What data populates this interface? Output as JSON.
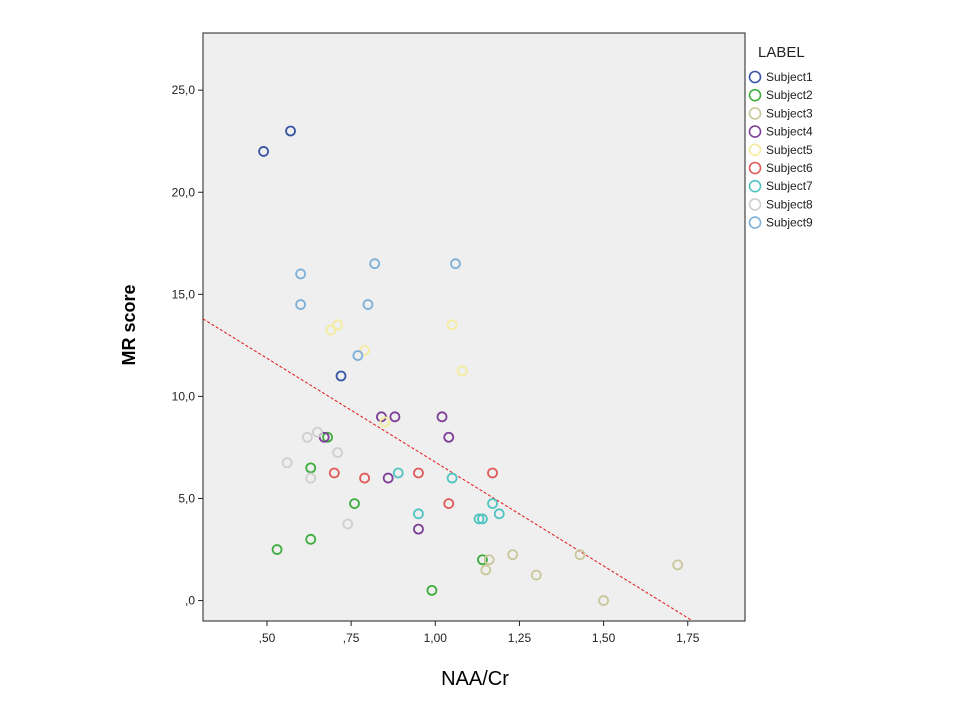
{
  "chart_data": {
    "type": "scatter",
    "xlabel": "NAA/Cr",
    "ylabel": "MR score",
    "xlim": [
      0.31,
      1.92
    ],
    "ylim": [
      -1.0,
      27.8
    ],
    "x_ticks": [
      {
        "value": 0.5,
        "label": ",50"
      },
      {
        "value": 0.75,
        "label": ",75"
      },
      {
        "value": 1.0,
        "label": "1,00"
      },
      {
        "value": 1.25,
        "label": "1,25"
      },
      {
        "value": 1.5,
        "label": "1,50"
      },
      {
        "value": 1.75,
        "label": "1,75"
      }
    ],
    "y_ticks": [
      {
        "value": 0,
        "label": ",0"
      },
      {
        "value": 5,
        "label": "5,0"
      },
      {
        "value": 10,
        "label": "10,0"
      },
      {
        "value": 15,
        "label": "15,0"
      },
      {
        "value": 20,
        "label": "20,0"
      },
      {
        "value": 25,
        "label": "25,0"
      }
    ],
    "grid": false,
    "background": "#efefef",
    "legend_title": "LABEL",
    "legend_position": "right",
    "fit_line": {
      "x": [
        0.31,
        1.76
      ],
      "y": [
        13.8,
        -0.95
      ],
      "color": "#e31a1c",
      "style": "dashed"
    },
    "series": [
      {
        "name": "Subject1",
        "color": "#3a55a4",
        "points": [
          [
            0.49,
            22.0
          ],
          [
            0.57,
            23.0
          ],
          [
            0.72,
            11.0
          ]
        ]
      },
      {
        "name": "Subject2",
        "color": "#3fae3f",
        "points": [
          [
            0.53,
            2.5
          ],
          [
            0.63,
            3.0
          ],
          [
            0.63,
            6.5
          ],
          [
            0.68,
            8.0
          ],
          [
            0.76,
            4.75
          ],
          [
            0.99,
            0.5
          ],
          [
            1.14,
            2.0
          ]
        ]
      },
      {
        "name": "Subject3",
        "color": "#c8c89a",
        "points": [
          [
            1.15,
            1.5
          ],
          [
            1.23,
            2.25
          ],
          [
            1.3,
            1.25
          ],
          [
            1.43,
            2.25
          ],
          [
            1.5,
            0.0
          ],
          [
            1.72,
            1.75
          ],
          [
            1.16,
            2.0
          ]
        ]
      },
      {
        "name": "Subject4",
        "color": "#7e3f98",
        "points": [
          [
            0.67,
            8.0
          ],
          [
            0.84,
            9.0
          ],
          [
            0.88,
            9.0
          ],
          [
            0.86,
            6.0
          ],
          [
            0.95,
            3.5
          ],
          [
            1.02,
            9.0
          ],
          [
            1.04,
            8.0
          ]
        ]
      },
      {
        "name": "Subject5",
        "color": "#f5ec9c",
        "points": [
          [
            0.69,
            13.25
          ],
          [
            0.71,
            13.5
          ],
          [
            0.79,
            12.25
          ],
          [
            0.85,
            8.75
          ],
          [
            1.05,
            13.5
          ],
          [
            1.08,
            11.25
          ]
        ]
      },
      {
        "name": "Subject6",
        "color": "#e15a5a",
        "points": [
          [
            0.7,
            6.25
          ],
          [
            0.79,
            6.0
          ],
          [
            0.95,
            6.25
          ],
          [
            1.04,
            4.75
          ],
          [
            1.17,
            6.25
          ]
        ]
      },
      {
        "name": "Subject7",
        "color": "#4fc4c0",
        "points": [
          [
            0.89,
            6.25
          ],
          [
            0.95,
            4.25
          ],
          [
            1.05,
            6.0
          ],
          [
            1.13,
            4.0
          ],
          [
            1.14,
            4.0
          ],
          [
            1.17,
            4.75
          ],
          [
            1.19,
            4.25
          ]
        ]
      },
      {
        "name": "Subject8",
        "color": "#cfcfcf",
        "points": [
          [
            0.56,
            6.75
          ],
          [
            0.62,
            8.0
          ],
          [
            0.63,
            6.0
          ],
          [
            0.65,
            8.25
          ],
          [
            0.71,
            7.25
          ],
          [
            0.74,
            3.75
          ]
        ]
      },
      {
        "name": "Subject9",
        "color": "#7fb0d8",
        "points": [
          [
            0.6,
            16.0
          ],
          [
            0.6,
            14.5
          ],
          [
            0.77,
            12.0
          ],
          [
            0.8,
            14.5
          ],
          [
            0.82,
            16.5
          ],
          [
            1.06,
            16.5
          ]
        ]
      }
    ]
  }
}
